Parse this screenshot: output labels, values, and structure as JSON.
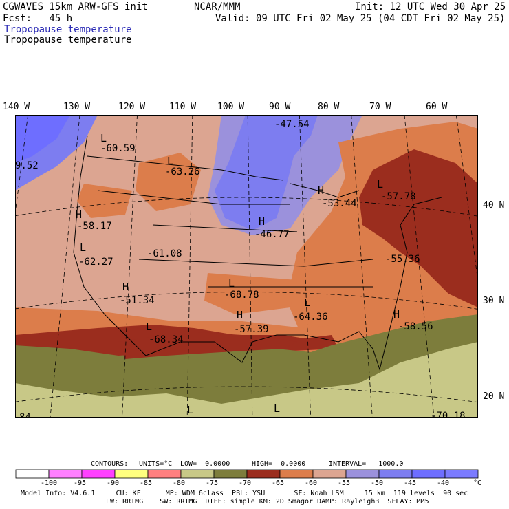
{
  "header": {
    "model_line": "CGWAVES 15km ARW-GFS init",
    "fcst_line": "Fcst:   45 h",
    "org": "NCAR/MMM",
    "init": "Init: 12 UTC Wed 30 Apr 25",
    "valid": "Valid: 09 UTC Fri 02 May 25 (04 CDT Fri 02 May 25)",
    "field_blue": "Tropopause temperature",
    "field_black": "Tropopause temperature"
  },
  "axes": {
    "lon_labels": [
      "140 W",
      "130 W",
      "120 W",
      "110 W",
      "100 W",
      "90 W",
      "80 W",
      "70 W",
      "60 W"
    ],
    "lat_labels": [
      "40 N",
      "30 N",
      "20 N"
    ]
  },
  "map_labels": [
    {
      "letter": "L",
      "value": "-60.59"
    },
    {
      "letter": "L",
      "value": "-63.26"
    },
    {
      "letter": "",
      "value": "-47.54"
    },
    {
      "letter": "",
      "value": "9.52"
    },
    {
      "letter": "H",
      "value": "-58.17"
    },
    {
      "letter": "L",
      "value": "-62.27"
    },
    {
      "letter": "",
      "value": "-61.08"
    },
    {
      "letter": "H",
      "value": "-46.77"
    },
    {
      "letter": "H",
      "value": "-53.44"
    },
    {
      "letter": "L",
      "value": "-57.78"
    },
    {
      "letter": "",
      "value": "-55.36"
    },
    {
      "letter": "H",
      "value": "-51.34"
    },
    {
      "letter": "L",
      "value": "-68.78"
    },
    {
      "letter": "H",
      "value": "-57.39"
    },
    {
      "letter": "L",
      "value": "-64.36"
    },
    {
      "letter": "H",
      "value": "-58.56"
    },
    {
      "letter": "L",
      "value": "-68.34"
    },
    {
      "letter": "L",
      "value": ""
    },
    {
      "letter": "L",
      "value": ""
    },
    {
      "letter": "",
      "value": "84"
    },
    {
      "letter": "",
      "value": "-70.18"
    }
  ],
  "contours_line": {
    "contours": "CONTOURS:",
    "units": "UNITS=°C",
    "low": "LOW=  0.0000",
    "high": "HIGH=  0.0000",
    "interval": "INTERVAL=   1000.0"
  },
  "colorbar": {
    "colors": [
      "#ffffff",
      "#ff7fff",
      "#ff40ff",
      "#ffff7f",
      "#ff7f7f",
      "#c8c887",
      "#7d7d3c",
      "#9b2d1e",
      "#dc7d4b",
      "#dca591",
      "#9b91dc",
      "#7d7df0",
      "#6e6eff",
      "#7b7bff"
    ],
    "labels": [
      "-100",
      "-95",
      "-90",
      "-85",
      "-80",
      "-75",
      "-70",
      "-65",
      "-60",
      "-55",
      "-50",
      "-45",
      "-40",
      "°C"
    ]
  },
  "footer": {
    "line1": "Model Info: V4.6.1     CU: KF      MP: WDM 6class  PBL: YSU       SF: Noah LSM     15 km  119 levels  90 sec",
    "line2": "LW: RRTMG    SW: RRTMG  DIFF: simple KM: 2D Smagor DAMP: Rayleigh3  SFLAY: MM5"
  }
}
